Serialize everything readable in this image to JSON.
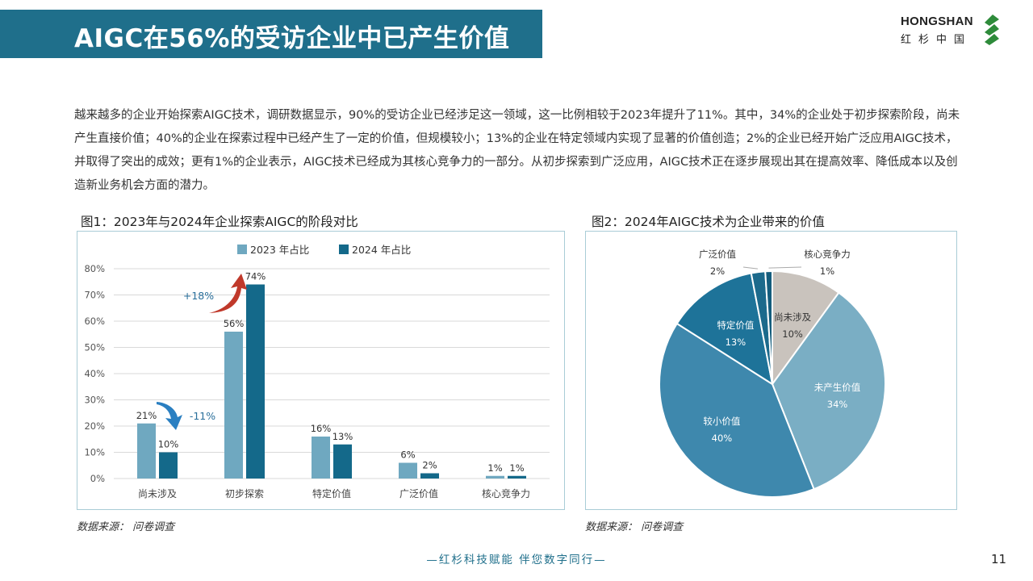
{
  "header": {
    "title": "AIGC在56%的受访企业中已产生价值",
    "logo_name": "HONGSHAN",
    "logo_sub": "红杉中国"
  },
  "intro": "越来越多的企业开始探索AIGC技术，调研数据显示，90%的受访企业已经涉足这一领域，这一比例相较于2023年提升了11%。其中，34%的企业处于初步探索阶段，尚未产生直接价值；40%的企业在探索过程中已经产生了一定的价值，但规模较小；13%的企业在特定领域内实现了显著的价值创造；2%的企业已经开始广泛应用AIGC技术，并取得了突出的成效；更有1%的企业表示，AIGC技术已经成为其核心竞争力的一部分。从初步探索到广泛应用，AIGC技术正在逐步展现出其在提高效率、降低成本以及创造新业务机会方面的潜力。",
  "colors": {
    "banner": "#1f6f8b",
    "bar2023": "#6fa8c0",
    "bar2024": "#14698a",
    "panel_border": "#a9ccd6",
    "arrow_up": "#c0392b",
    "arrow_down": "#2a7fc1"
  },
  "chart1": {
    "title": "图1：2023年与2024年企业探索AIGC的阶段对比",
    "source": "数据来源： 问卷调查",
    "annotation_up": "+18%",
    "annotation_down": "-11%"
  },
  "chart2": {
    "title": "图2：2024年AIGC技术为企业带来的价值",
    "source": "数据来源： 问卷调查"
  },
  "chart_data": [
    {
      "type": "bar",
      "title": "图1：2023年与2024年企业探索AIGC的阶段对比",
      "categories": [
        "尚未涉及",
        "初步探索",
        "特定价值",
        "广泛价值",
        "核心竞争力"
      ],
      "series": [
        {
          "name": "2023 年占比",
          "values": [
            21,
            56,
            16,
            6,
            1
          ],
          "labels": [
            "21%",
            "56%",
            "16%",
            "6%",
            "1%"
          ]
        },
        {
          "name": "2024 年占比",
          "values": [
            10,
            74,
            13,
            2,
            1
          ],
          "labels": [
            "10%",
            "74%",
            "13%",
            "2%",
            "1%"
          ]
        }
      ],
      "ylim": [
        0,
        80
      ],
      "yticks": [
        "0%",
        "10%",
        "20%",
        "30%",
        "40%",
        "50%",
        "60%",
        "70%",
        "80%"
      ],
      "grid": true,
      "legend": "top"
    },
    {
      "type": "pie",
      "title": "图2：2024年AIGC技术为企业带来的价值",
      "slices": [
        {
          "name": "尚未涉及",
          "value": 10,
          "label": "10%",
          "color": "#c9c3bd",
          "text_color": "#333333"
        },
        {
          "name": "未产生价值",
          "value": 34,
          "label": "34%",
          "color": "#7aaec4",
          "text_color": "#ffffff"
        },
        {
          "name": "较小价值",
          "value": 40,
          "label": "40%",
          "color": "#3e88ad",
          "text_color": "#ffffff"
        },
        {
          "name": "特定价值",
          "value": 13,
          "label": "13%",
          "color": "#1e7399",
          "text_color": "#ffffff"
        },
        {
          "name": "广泛价值",
          "value": 2,
          "label": "2%",
          "color": "#1c6a8c",
          "text_color": "#333333"
        },
        {
          "name": "核心竞争力",
          "value": 1,
          "label": "1%",
          "color": "#145d7d",
          "text_color": "#333333"
        }
      ]
    }
  ],
  "footer": {
    "slogan": "—红杉科技赋能   伴您数字同行—",
    "page": "11"
  }
}
